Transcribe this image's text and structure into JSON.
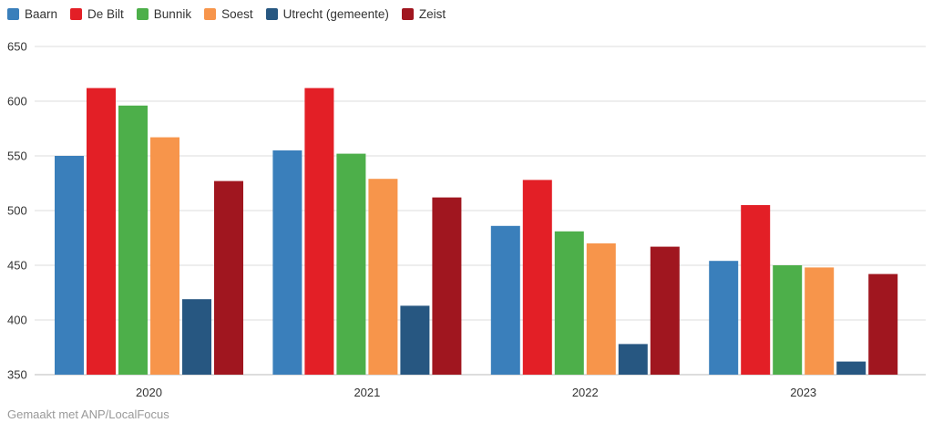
{
  "chart_data": {
    "type": "bar",
    "categories": [
      "2020",
      "2021",
      "2022",
      "2023"
    ],
    "series": [
      {
        "name": "Baarn",
        "color": "#3a7fbb",
        "values": [
          550,
          555,
          486,
          454
        ]
      },
      {
        "name": "De Bilt",
        "color": "#e31f26",
        "values": [
          612,
          612,
          528,
          505
        ]
      },
      {
        "name": "Bunnik",
        "color": "#4daf4a",
        "values": [
          596,
          552,
          481,
          450
        ]
      },
      {
        "name": "Soest",
        "color": "#f7954b",
        "values": [
          567,
          529,
          470,
          448
        ]
      },
      {
        "name": "Utrecht (gemeente)",
        "color": "#275781",
        "values": [
          419,
          413,
          378,
          362
        ]
      },
      {
        "name": "Zeist",
        "color": "#a0161f",
        "values": [
          527,
          512,
          467,
          442
        ]
      }
    ],
    "ylim": [
      350,
      650
    ],
    "yticks": [
      350,
      400,
      450,
      500,
      550,
      600,
      650
    ],
    "grid": true,
    "legend": "top-left"
  },
  "footer": {
    "credit": "Gemaakt met ANP/LocalFocus"
  }
}
